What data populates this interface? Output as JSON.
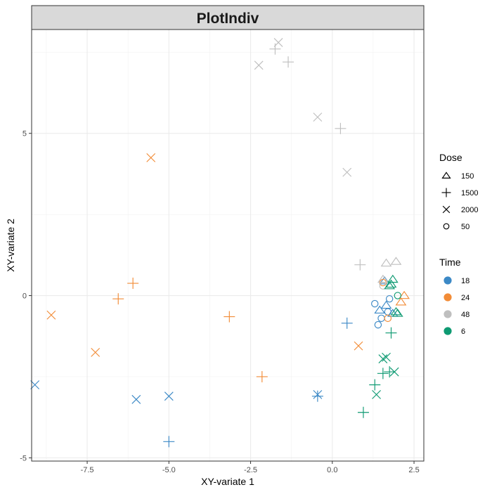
{
  "chart_data": {
    "type": "scatter",
    "title": "PlotIndiv",
    "xlabel": "XY-variate 1",
    "ylabel": "XY-variate 2",
    "xlim": [
      -9.2,
      2.8
    ],
    "ylim": [
      -5.1,
      8.2
    ],
    "x_ticks": [
      -7.5,
      -5.0,
      -2.5,
      0.0,
      2.5
    ],
    "x_tick_labels": [
      "-7.5",
      "-5.0",
      "-2.5",
      "0.0",
      "2.5"
    ],
    "y_ticks": [
      -5,
      0,
      5
    ],
    "y_tick_labels": [
      "-5",
      "0",
      "5"
    ],
    "grid": true,
    "legend_position": "right",
    "legends": {
      "shape": {
        "title": "Dose",
        "entries": [
          {
            "label": "150",
            "shape": "triangle"
          },
          {
            "label": "1500",
            "shape": "plus"
          },
          {
            "label": "2000",
            "shape": "cross"
          },
          {
            "label": "50",
            "shape": "circle"
          }
        ]
      },
      "color": {
        "title": "Time",
        "entries": [
          {
            "label": "18",
            "color": "#3C89C6"
          },
          {
            "label": "24",
            "color": "#F28C37"
          },
          {
            "label": "48",
            "color": "#BFBFBF"
          },
          {
            "label": "6",
            "color": "#0E9A72"
          }
        ]
      }
    },
    "points": [
      {
        "x": -9.1,
        "y": -2.75,
        "dose": "2000",
        "time": "18"
      },
      {
        "x": -6.0,
        "y": -3.2,
        "dose": "2000",
        "time": "18"
      },
      {
        "x": -5.0,
        "y": -3.1,
        "dose": "2000",
        "time": "18"
      },
      {
        "x": -5.0,
        "y": -4.5,
        "dose": "1500",
        "time": "18"
      },
      {
        "x": -0.45,
        "y": -3.05,
        "dose": "2000",
        "time": "18"
      },
      {
        "x": -0.45,
        "y": -3.1,
        "dose": "1500",
        "time": "18"
      },
      {
        "x": 0.45,
        "y": -0.85,
        "dose": "1500",
        "time": "18"
      },
      {
        "x": 1.3,
        "y": -0.25,
        "dose": "50",
        "time": "18"
      },
      {
        "x": 1.4,
        "y": -0.9,
        "dose": "50",
        "time": "18"
      },
      {
        "x": 1.45,
        "y": -0.45,
        "dose": "150",
        "time": "18"
      },
      {
        "x": 1.5,
        "y": -0.7,
        "dose": "50",
        "time": "18"
      },
      {
        "x": 1.6,
        "y": 0.45,
        "dose": "150",
        "time": "18"
      },
      {
        "x": 1.65,
        "y": -0.3,
        "dose": "150",
        "time": "18"
      },
      {
        "x": 1.7,
        "y": -0.5,
        "dose": "50",
        "time": "18"
      },
      {
        "x": 1.75,
        "y": -0.1,
        "dose": "50",
        "time": "18"
      },
      {
        "x": 1.85,
        "y": -0.55,
        "dose": "150",
        "time": "18"
      },
      {
        "x": -8.6,
        "y": -0.6,
        "dose": "2000",
        "time": "24"
      },
      {
        "x": -7.25,
        "y": -1.75,
        "dose": "2000",
        "time": "24"
      },
      {
        "x": -6.55,
        "y": -0.1,
        "dose": "1500",
        "time": "24"
      },
      {
        "x": -6.1,
        "y": 0.38,
        "dose": "1500",
        "time": "24"
      },
      {
        "x": -5.55,
        "y": 4.25,
        "dose": "2000",
        "time": "24"
      },
      {
        "x": -3.15,
        "y": -0.65,
        "dose": "1500",
        "time": "24"
      },
      {
        "x": -2.15,
        "y": -2.5,
        "dose": "1500",
        "time": "24"
      },
      {
        "x": 0.8,
        "y": -1.55,
        "dose": "2000",
        "time": "24"
      },
      {
        "x": 1.55,
        "y": 0.4,
        "dose": "50",
        "time": "24"
      },
      {
        "x": 1.7,
        "y": -0.7,
        "dose": "50",
        "time": "24"
      },
      {
        "x": 2.1,
        "y": -0.2,
        "dose": "150",
        "time": "24"
      },
      {
        "x": 2.2,
        "y": 0.0,
        "dose": "150",
        "time": "24"
      },
      {
        "x": -2.25,
        "y": 7.1,
        "dose": "2000",
        "time": "48"
      },
      {
        "x": -1.75,
        "y": 7.6,
        "dose": "1500",
        "time": "48"
      },
      {
        "x": -1.65,
        "y": 7.8,
        "dose": "2000",
        "time": "48"
      },
      {
        "x": -1.35,
        "y": 7.2,
        "dose": "1500",
        "time": "48"
      },
      {
        "x": -0.45,
        "y": 5.5,
        "dose": "2000",
        "time": "48"
      },
      {
        "x": 0.25,
        "y": 5.15,
        "dose": "1500",
        "time": "48"
      },
      {
        "x": 0.45,
        "y": 3.8,
        "dose": "2000",
        "time": "48"
      },
      {
        "x": 0.85,
        "y": 0.95,
        "dose": "1500",
        "time": "48"
      },
      {
        "x": 1.55,
        "y": 0.3,
        "dose": "50",
        "time": "48"
      },
      {
        "x": 1.65,
        "y": 1.0,
        "dose": "150",
        "time": "48"
      },
      {
        "x": 1.95,
        "y": 1.05,
        "dose": "150",
        "time": "48"
      },
      {
        "x": 1.55,
        "y": 0.5,
        "dose": "150",
        "time": "48"
      },
      {
        "x": 0.95,
        "y": -3.6,
        "dose": "1500",
        "time": "6"
      },
      {
        "x": 1.35,
        "y": -3.05,
        "dose": "2000",
        "time": "6"
      },
      {
        "x": 1.3,
        "y": -2.75,
        "dose": "1500",
        "time": "6"
      },
      {
        "x": 1.55,
        "y": -2.4,
        "dose": "1500",
        "time": "6"
      },
      {
        "x": 1.75,
        "y": -2.35,
        "dose": "1500",
        "time": "6"
      },
      {
        "x": 1.9,
        "y": -2.35,
        "dose": "2000",
        "time": "6"
      },
      {
        "x": 1.55,
        "y": -1.95,
        "dose": "2000",
        "time": "6"
      },
      {
        "x": 1.65,
        "y": -1.9,
        "dose": "2000",
        "time": "6"
      },
      {
        "x": 1.8,
        "y": -1.15,
        "dose": "1500",
        "time": "6"
      },
      {
        "x": 1.75,
        "y": 0.3,
        "dose": "150",
        "time": "6"
      },
      {
        "x": 1.85,
        "y": 0.5,
        "dose": "150",
        "time": "6"
      },
      {
        "x": 1.95,
        "y": -0.5,
        "dose": "150",
        "time": "6"
      },
      {
        "x": 2.0,
        "y": -0.55,
        "dose": "150",
        "time": "6"
      },
      {
        "x": 2.0,
        "y": 0.0,
        "dose": "50",
        "time": "6"
      },
      {
        "x": 1.8,
        "y": 0.35,
        "dose": "150",
        "time": "6"
      }
    ]
  }
}
